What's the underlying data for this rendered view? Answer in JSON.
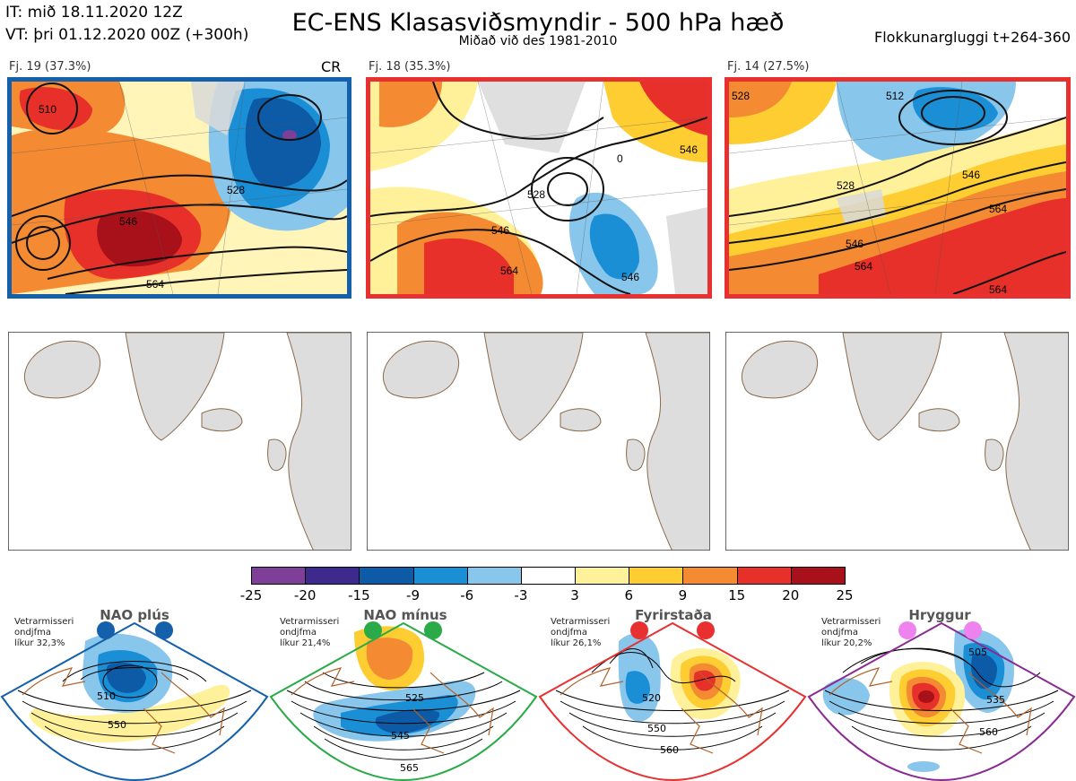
{
  "header": {
    "it_line": "IT: mið 18.11.2020 12Z",
    "vt_line": "VT: þri 01.12.2020 00Z  (+300h)",
    "title": "EC-ENS Klasasviðsmyndir - 500 hPa hæð",
    "subtitle": "Miðað við des 1981-2010",
    "window": "Flokkunargluggi t+264-360"
  },
  "clusters": [
    {
      "label": "Fj. 19 (37.3%)",
      "tag": "CR",
      "frame_color": "#1560aa",
      "contours": [
        "510",
        "528",
        "546",
        "564"
      ]
    },
    {
      "label": "Fj. 18 (35.3%)",
      "tag": "",
      "frame_color": "#e83030",
      "contours": [
        "546",
        "528",
        "0",
        "546",
        "564",
        "546"
      ]
    },
    {
      "label": "Fj. 14 (27.5%)",
      "tag": "",
      "frame_color": "#e83030",
      "contours": [
        "528",
        "512",
        "546",
        "564",
        "546",
        "564",
        "564",
        "528"
      ]
    }
  ],
  "colorbar": {
    "ticks": [
      "-25",
      "-20",
      "-15",
      "-9",
      "-6",
      "-3",
      "3",
      "6",
      "9",
      "15",
      "20",
      "25"
    ],
    "colors": [
      "#7d3f98",
      "#3e2a8c",
      "#0d5aa6",
      "#1b8fd6",
      "#88c6ec",
      "#ffffff",
      "#fff19a",
      "#fdcd32",
      "#f48a32",
      "#e8302a",
      "#a8101a"
    ]
  },
  "regimes": [
    {
      "name": "NAO plús",
      "dot_color": "#1560aa",
      "frame_color": "#1560aa",
      "info": [
        "Vetrarmisseri",
        "ondjfma",
        "líkur 32,3%"
      ],
      "contours": [
        "510",
        "550"
      ]
    },
    {
      "name": "NAO mínus",
      "dot_color": "#2aaa48",
      "frame_color": "#2aaa48",
      "info": [
        "Vetrarmisseri",
        "ondjfma",
        "líkur 21,4%"
      ],
      "contours": [
        "525",
        "545",
        "565"
      ]
    },
    {
      "name": "Fyrirstaða",
      "dot_color": "#e83030",
      "frame_color": "#e83030",
      "info": [
        "Vetrarmisseri",
        "ondjfma",
        "líkur 26,1%"
      ],
      "contours": [
        "520",
        "550",
        "560"
      ]
    },
    {
      "name": "Hryggur",
      "dot_color": "#ee82ee",
      "frame_color": "#8a2a92",
      "info": [
        "Vetrarmisseri",
        "ondjfma",
        "líkur 20,2%"
      ],
      "contours": [
        "505",
        "535",
        "560"
      ]
    }
  ]
}
